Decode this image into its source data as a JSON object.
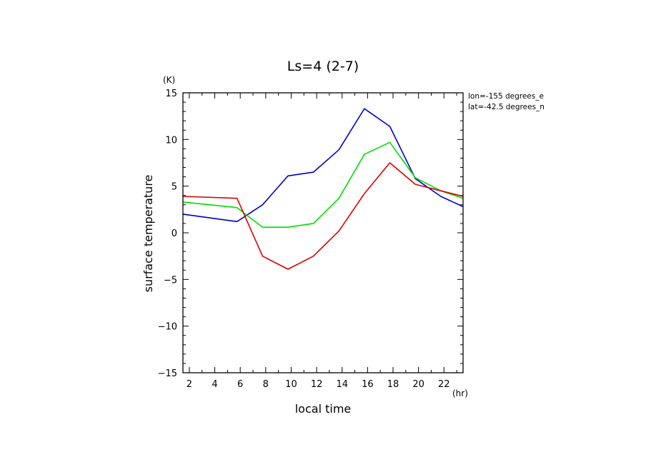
{
  "chart_data": {
    "type": "line",
    "title": "Ls=4 (2-7)",
    "xlabel": "local time",
    "ylabel": "surface temperature",
    "xunit": "(hr)",
    "yunit": "(K)",
    "xlim": [
      1.5,
      23.5
    ],
    "ylim": [
      -15,
      15
    ],
    "xticks": [
      2,
      4,
      6,
      8,
      10,
      12,
      14,
      16,
      18,
      20,
      22
    ],
    "yticks": [
      -15,
      -10,
      -5,
      0,
      5,
      10,
      15
    ],
    "annotations": [
      "lon=-155 degrees_e",
      "lat=-42.5 degrees_n"
    ],
    "x": [
      1.5,
      5.75,
      7.75,
      9.75,
      11.75,
      13.75,
      15.75,
      17.75,
      19.75,
      21.75,
      23.5
    ],
    "series": [
      {
        "color": "#0000cc",
        "values": [
          2.0,
          1.2,
          3.0,
          6.1,
          6.5,
          8.9,
          13.3,
          11.4,
          5.8,
          3.9,
          2.8
        ]
      },
      {
        "color": "#00dd00",
        "values": [
          3.3,
          2.7,
          0.6,
          0.6,
          1.0,
          3.7,
          8.4,
          9.7,
          5.9,
          4.5,
          3.7
        ]
      },
      {
        "color": "#dd0000",
        "values": [
          3.9,
          3.7,
          -2.5,
          -3.9,
          -2.5,
          0.2,
          4.2,
          7.5,
          5.2,
          4.5,
          3.9
        ]
      }
    ]
  }
}
